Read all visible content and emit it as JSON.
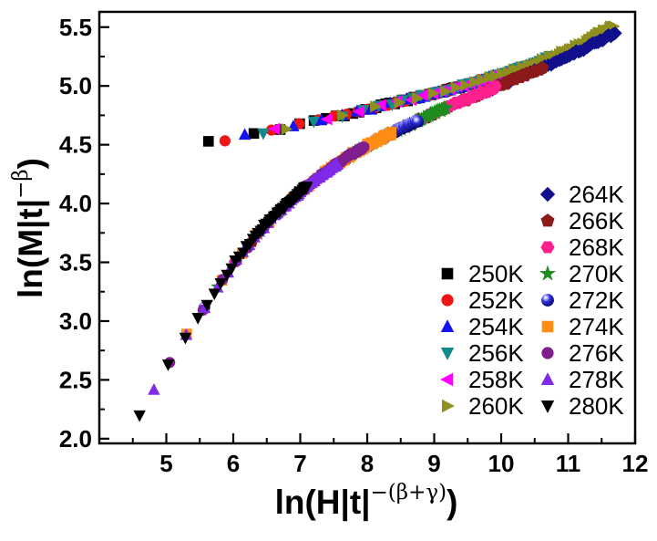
{
  "chart_data": {
    "type": "scatter",
    "title": "",
    "xlabel": {
      "pre": "ln(H|t|",
      "sup": "−(β+γ)",
      "post": ")"
    },
    "ylabel": {
      "pre": "ln(M|t|",
      "sup": "−β",
      "post": ")"
    },
    "xlim": [
      4.0,
      12.0
    ],
    "ylim": [
      1.96,
      5.63
    ],
    "xtick_values": [
      5,
      6,
      7,
      8,
      9,
      10,
      11,
      12
    ],
    "xtick_labels": [
      "5",
      "6",
      "7",
      "8",
      "9",
      "10",
      "11",
      "12"
    ],
    "ytick_values": [
      2.0,
      2.5,
      3.0,
      3.5,
      4.0,
      4.5,
      5.0,
      5.5
    ],
    "ytick_labels": [
      "2.0",
      "2.5",
      "3.0",
      "3.5",
      "4.0",
      "4.5",
      "5.0",
      "5.5"
    ],
    "x_minor_values": [
      4.5,
      5.5,
      6.5,
      7.5,
      8.5,
      9.5,
      10.5,
      11.5
    ],
    "y_minor_values": [
      2.25,
      2.75,
      3.25,
      3.75,
      4.25,
      4.75,
      5.25
    ],
    "grid": false,
    "legend_position": "inside-right-middle",
    "branches": {
      "below_Tc": {
        "description": "upper scaling branch (T < Tc), temperatures 250K-260K collapse onto it",
        "anchors": [
          [
            5.6,
            4.515
          ],
          [
            6.0,
            4.555
          ],
          [
            6.4,
            4.6
          ],
          [
            6.8,
            4.645
          ],
          [
            7.2,
            4.695
          ],
          [
            7.6,
            4.745
          ],
          [
            8.0,
            4.8
          ],
          [
            8.4,
            4.855
          ],
          [
            8.8,
            4.91
          ],
          [
            9.2,
            4.965
          ],
          [
            9.6,
            5.03
          ],
          [
            10.0,
            5.1
          ],
          [
            10.4,
            5.17
          ],
          [
            10.8,
            5.26
          ],
          [
            11.2,
            5.36
          ],
          [
            11.7,
            5.52
          ]
        ]
      },
      "above_Tc": {
        "description": "lower scaling branch (T > Tc), temperatures 264K-280K collapse onto it",
        "anchors": [
          [
            4.6,
            2.19
          ],
          [
            4.82,
            2.41
          ],
          [
            5.04,
            2.64
          ],
          [
            5.3,
            2.88
          ],
          [
            5.55,
            3.09
          ],
          [
            5.8,
            3.32
          ],
          [
            6.05,
            3.52
          ],
          [
            6.3,
            3.7
          ],
          [
            6.55,
            3.86
          ],
          [
            6.85,
            4.02
          ],
          [
            7.15,
            4.17
          ],
          [
            7.45,
            4.3
          ],
          [
            7.8,
            4.43
          ],
          [
            8.15,
            4.54
          ],
          [
            8.55,
            4.65
          ],
          [
            9.0,
            4.77
          ],
          [
            9.45,
            4.88
          ],
          [
            9.9,
            4.985
          ],
          [
            10.35,
            5.09
          ],
          [
            10.8,
            5.2
          ],
          [
            11.25,
            5.32
          ],
          [
            11.7,
            5.45
          ]
        ]
      }
    },
    "series": [
      {
        "name": "250K",
        "marker": "square",
        "color": "#000000",
        "branch": "below_Tc",
        "x_start": 5.63,
        "x_end": 9.55,
        "n_points": 55
      },
      {
        "name": "252K",
        "marker": "circle",
        "color": "#F01414",
        "branch": "below_Tc",
        "x_start": 5.87,
        "x_end": 9.95,
        "n_points": 55
      },
      {
        "name": "254K",
        "marker": "triangle-up",
        "color": "#1414F0",
        "branch": "below_Tc",
        "x_start": 6.18,
        "x_end": 10.35,
        "n_points": 55
      },
      {
        "name": "256K",
        "marker": "triangle-down",
        "color": "#128A8A",
        "branch": "below_Tc",
        "x_start": 6.45,
        "x_end": 10.75,
        "n_points": 55
      },
      {
        "name": "258K",
        "marker": "triangle-left",
        "color": "#FF00FF",
        "branch": "below_Tc",
        "x_start": 6.62,
        "x_end": 11.18,
        "n_points": 55
      },
      {
        "name": "260K",
        "marker": "triangle-right",
        "color": "#8F8F1E",
        "branch": "below_Tc",
        "x_start": 6.78,
        "x_end": 11.68,
        "n_points": 55
      },
      {
        "name": "264K",
        "marker": "diamond",
        "color": "#10108C",
        "branch": "above_Tc",
        "x_start": 6.55,
        "x_end": 11.7,
        "n_points": 60
      },
      {
        "name": "266K",
        "marker": "pentagon",
        "color": "#8C1A1A",
        "branch": "above_Tc",
        "x_start": 6.28,
        "x_end": 10.62,
        "n_points": 55
      },
      {
        "name": "268K",
        "marker": "hexagon",
        "color": "#FF2090",
        "branch": "above_Tc",
        "x_start": 6.02,
        "x_end": 9.92,
        "n_points": 55
      },
      {
        "name": "270K",
        "marker": "star",
        "color": "#1E8C1E",
        "branch": "above_Tc",
        "x_start": 5.78,
        "x_end": 9.17,
        "n_points": 55
      },
      {
        "name": "272K",
        "marker": "sphere",
        "color": "#1C1CC8",
        "branch": "above_Tc",
        "x_start": 5.57,
        "x_end": 8.76,
        "n_points": 55
      },
      {
        "name": "274K",
        "marker": "square",
        "color": "#FF8C14",
        "branch": "above_Tc",
        "x_start": 5.3,
        "x_end": 8.36,
        "n_points": 55
      },
      {
        "name": "276K",
        "marker": "circle",
        "color": "#801E90",
        "branch": "above_Tc",
        "x_start": 5.04,
        "x_end": 7.95,
        "n_points": 55
      },
      {
        "name": "278K",
        "marker": "triangle-up",
        "color": "#7F2AE8",
        "branch": "above_Tc",
        "x_start": 4.82,
        "x_end": 7.55,
        "n_points": 55
      },
      {
        "name": "280K",
        "marker": "triangle-down",
        "color": "#000000",
        "branch": "above_Tc",
        "x_start": 4.6,
        "x_end": 7.1,
        "n_points": 55
      }
    ],
    "legend": {
      "left_column": [
        "250K",
        "252K",
        "254K",
        "256K",
        "258K",
        "260K"
      ],
      "right_column": [
        "264K",
        "266K",
        "268K",
        "270K",
        "272K",
        "274K",
        "276K",
        "278K",
        "280K"
      ]
    }
  }
}
